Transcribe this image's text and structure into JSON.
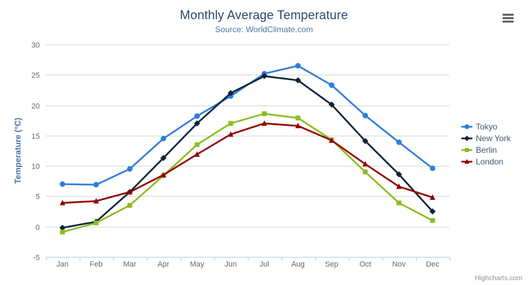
{
  "title": "Monthly Average Temperature",
  "subtitle": "Source: WorldClimate.com",
  "credits": "Highcharts.com",
  "menu_icon": "hamburger-icon",
  "colors": {
    "title": "#274b6d",
    "subtitle": "#4d759e",
    "axis_title": "#4572a7",
    "axis_labels": "#666666",
    "grid_line": "#d8d8d8",
    "axis_line": "#c0d0e0",
    "legend_text": "#3e576f",
    "credits_text": "#909090"
  },
  "chart_data": {
    "type": "line",
    "title": "Monthly Average Temperature",
    "subtitle": "Source: WorldClimate.com",
    "categories": [
      "Jan",
      "Feb",
      "Mar",
      "Apr",
      "May",
      "Jun",
      "Jul",
      "Aug",
      "Sep",
      "Oct",
      "Nov",
      "Dec"
    ],
    "series": [
      {
        "name": "Tokyo",
        "color": "#2f7ed8",
        "marker": "circle",
        "values": [
          7.0,
          6.9,
          9.5,
          14.5,
          18.2,
          21.5,
          25.2,
          26.5,
          23.3,
          18.3,
          13.9,
          9.6
        ]
      },
      {
        "name": "New York",
        "color": "#0d233a",
        "marker": "diamond",
        "values": [
          -0.2,
          0.8,
          5.7,
          11.3,
          17.0,
          22.0,
          24.8,
          24.1,
          20.1,
          14.1,
          8.6,
          2.5
        ]
      },
      {
        "name": "Berlin",
        "color": "#8bbc21",
        "marker": "square",
        "values": [
          -0.9,
          0.6,
          3.5,
          8.4,
          13.5,
          17.0,
          18.6,
          17.9,
          14.3,
          9.0,
          3.9,
          1.0
        ]
      },
      {
        "name": "London",
        "color": "#910000",
        "marker": "triangle",
        "values": [
          3.9,
          4.2,
          5.7,
          8.5,
          11.9,
          15.2,
          17.0,
          16.6,
          14.2,
          10.3,
          6.6,
          4.8
        ]
      }
    ],
    "xlabel": "",
    "ylabel": "Temperature (°C)",
    "ylim": [
      -5,
      30
    ],
    "ytick_step": 5,
    "grid": true,
    "legend_position": "right"
  }
}
